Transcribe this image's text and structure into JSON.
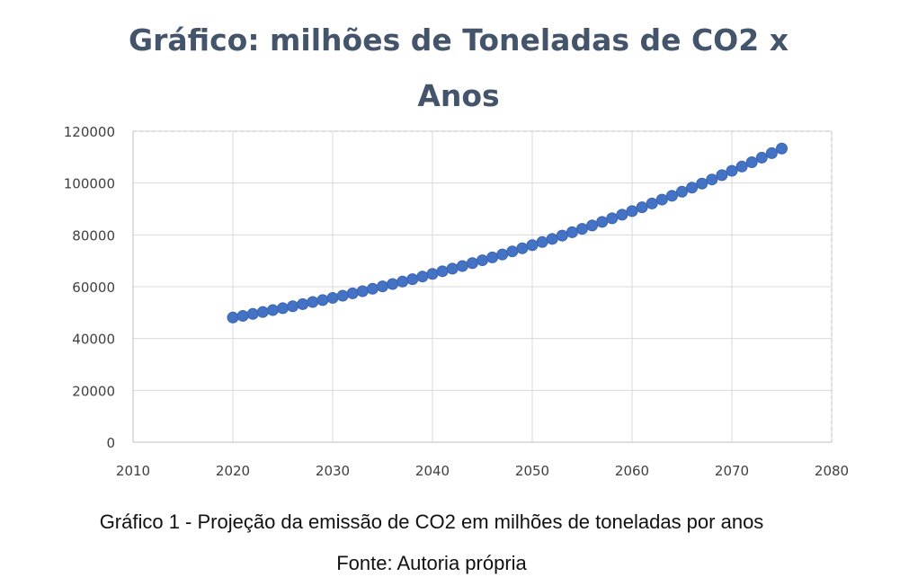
{
  "chart_data": {
    "type": "scatter",
    "title": "Gráfico: milhões de Toneladas de CO2 x Anos",
    "xlabel": "",
    "ylabel": "",
    "xlim": [
      2010,
      2080
    ],
    "ylim": [
      0,
      120000
    ],
    "x_ticks": [
      2010,
      2020,
      2030,
      2040,
      2050,
      2060,
      2070,
      2080
    ],
    "y_ticks": [
      0,
      20000,
      40000,
      60000,
      80000,
      100000,
      120000
    ],
    "grid": true,
    "legend": "none",
    "marker_color": "#4472c4",
    "x": [
      2020,
      2021,
      2022,
      2023,
      2024,
      2025,
      2026,
      2027,
      2028,
      2029,
      2030,
      2031,
      2032,
      2033,
      2034,
      2035,
      2036,
      2037,
      2038,
      2039,
      2040,
      2041,
      2042,
      2043,
      2044,
      2045,
      2046,
      2047,
      2048,
      2049,
      2050,
      2051,
      2052,
      2053,
      2054,
      2055,
      2056,
      2057,
      2058,
      2059,
      2060,
      2061,
      2062,
      2063,
      2064,
      2065,
      2066,
      2067,
      2068,
      2069,
      2070,
      2071,
      2072,
      2073,
      2074,
      2075
    ],
    "y": [
      52000,
      52700,
      53500,
      54300,
      55100,
      55900,
      56700,
      57600,
      58500,
      59300,
      60200,
      61100,
      62100,
      63000,
      64000,
      65000,
      66000,
      67000,
      68000,
      69100,
      70200,
      71300,
      72400,
      73500,
      74700,
      75900,
      77100,
      78300,
      79600,
      80900,
      82200,
      83500,
      84800,
      86200,
      87600,
      89000,
      90400,
      91900,
      93400,
      94900,
      96400,
      98000,
      99600,
      101200,
      102800,
      104500,
      106200,
      107900,
      109600,
      111400,
      113200,
      115000,
      116800,
      118700,
      120600,
      122500
    ]
  },
  "captions": {
    "figure": "Gráfico 1 - Projeção da emissão de CO2 em milhões de toneladas por anos",
    "source": "Fonte: Autoria própria"
  }
}
